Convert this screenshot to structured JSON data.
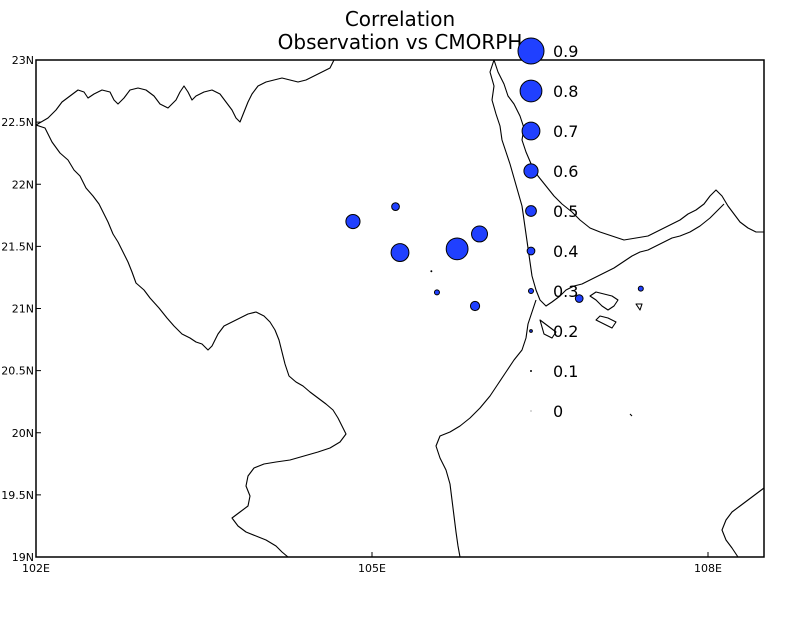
{
  "title": {
    "line1": "Correlation",
    "line2": "Observation vs CMORPH"
  },
  "colors": {
    "marker_fill": "#2040ff",
    "marker_stroke": "#000000",
    "coastline": "#000000"
  },
  "axes": {
    "x_ticks": [
      "102E",
      "105E",
      "108E"
    ],
    "y_ticks": [
      "23N",
      "22.5N",
      "22N",
      "21.5N",
      "21N",
      "20.5N",
      "20N",
      "19.5N",
      "19N"
    ]
  },
  "chart_data": {
    "type": "scatter",
    "lon_range": [
      102,
      108.5
    ],
    "lat_range": [
      19,
      23
    ],
    "size_encodes": "correlation",
    "points": [
      {
        "lon": 104.83,
        "lat": 21.7,
        "value": 0.6
      },
      {
        "lon": 105.21,
        "lat": 21.82,
        "value": 0.4
      },
      {
        "lon": 105.25,
        "lat": 21.45,
        "value": 0.7
      },
      {
        "lon": 105.53,
        "lat": 21.3,
        "value": 0.1
      },
      {
        "lon": 105.58,
        "lat": 21.13,
        "value": 0.3
      },
      {
        "lon": 105.76,
        "lat": 21.48,
        "value": 0.8
      },
      {
        "lon": 105.96,
        "lat": 21.6,
        "value": 0.65
      },
      {
        "lon": 105.92,
        "lat": 21.02,
        "value": 0.45
      },
      {
        "lon": 106.85,
        "lat": 21.08,
        "value": 0.4
      },
      {
        "lon": 107.4,
        "lat": 21.16,
        "value": 0.3
      }
    ],
    "legend": {
      "values": [
        0.9,
        0.8,
        0.7,
        0.6,
        0.5,
        0.4,
        0.3,
        0.2,
        0.1,
        0
      ],
      "labels": [
        "0.9",
        "0.8",
        "0.7",
        "0.6",
        "0.5",
        "0.4",
        "0.3",
        "0.2",
        "0.1",
        "0"
      ]
    }
  }
}
